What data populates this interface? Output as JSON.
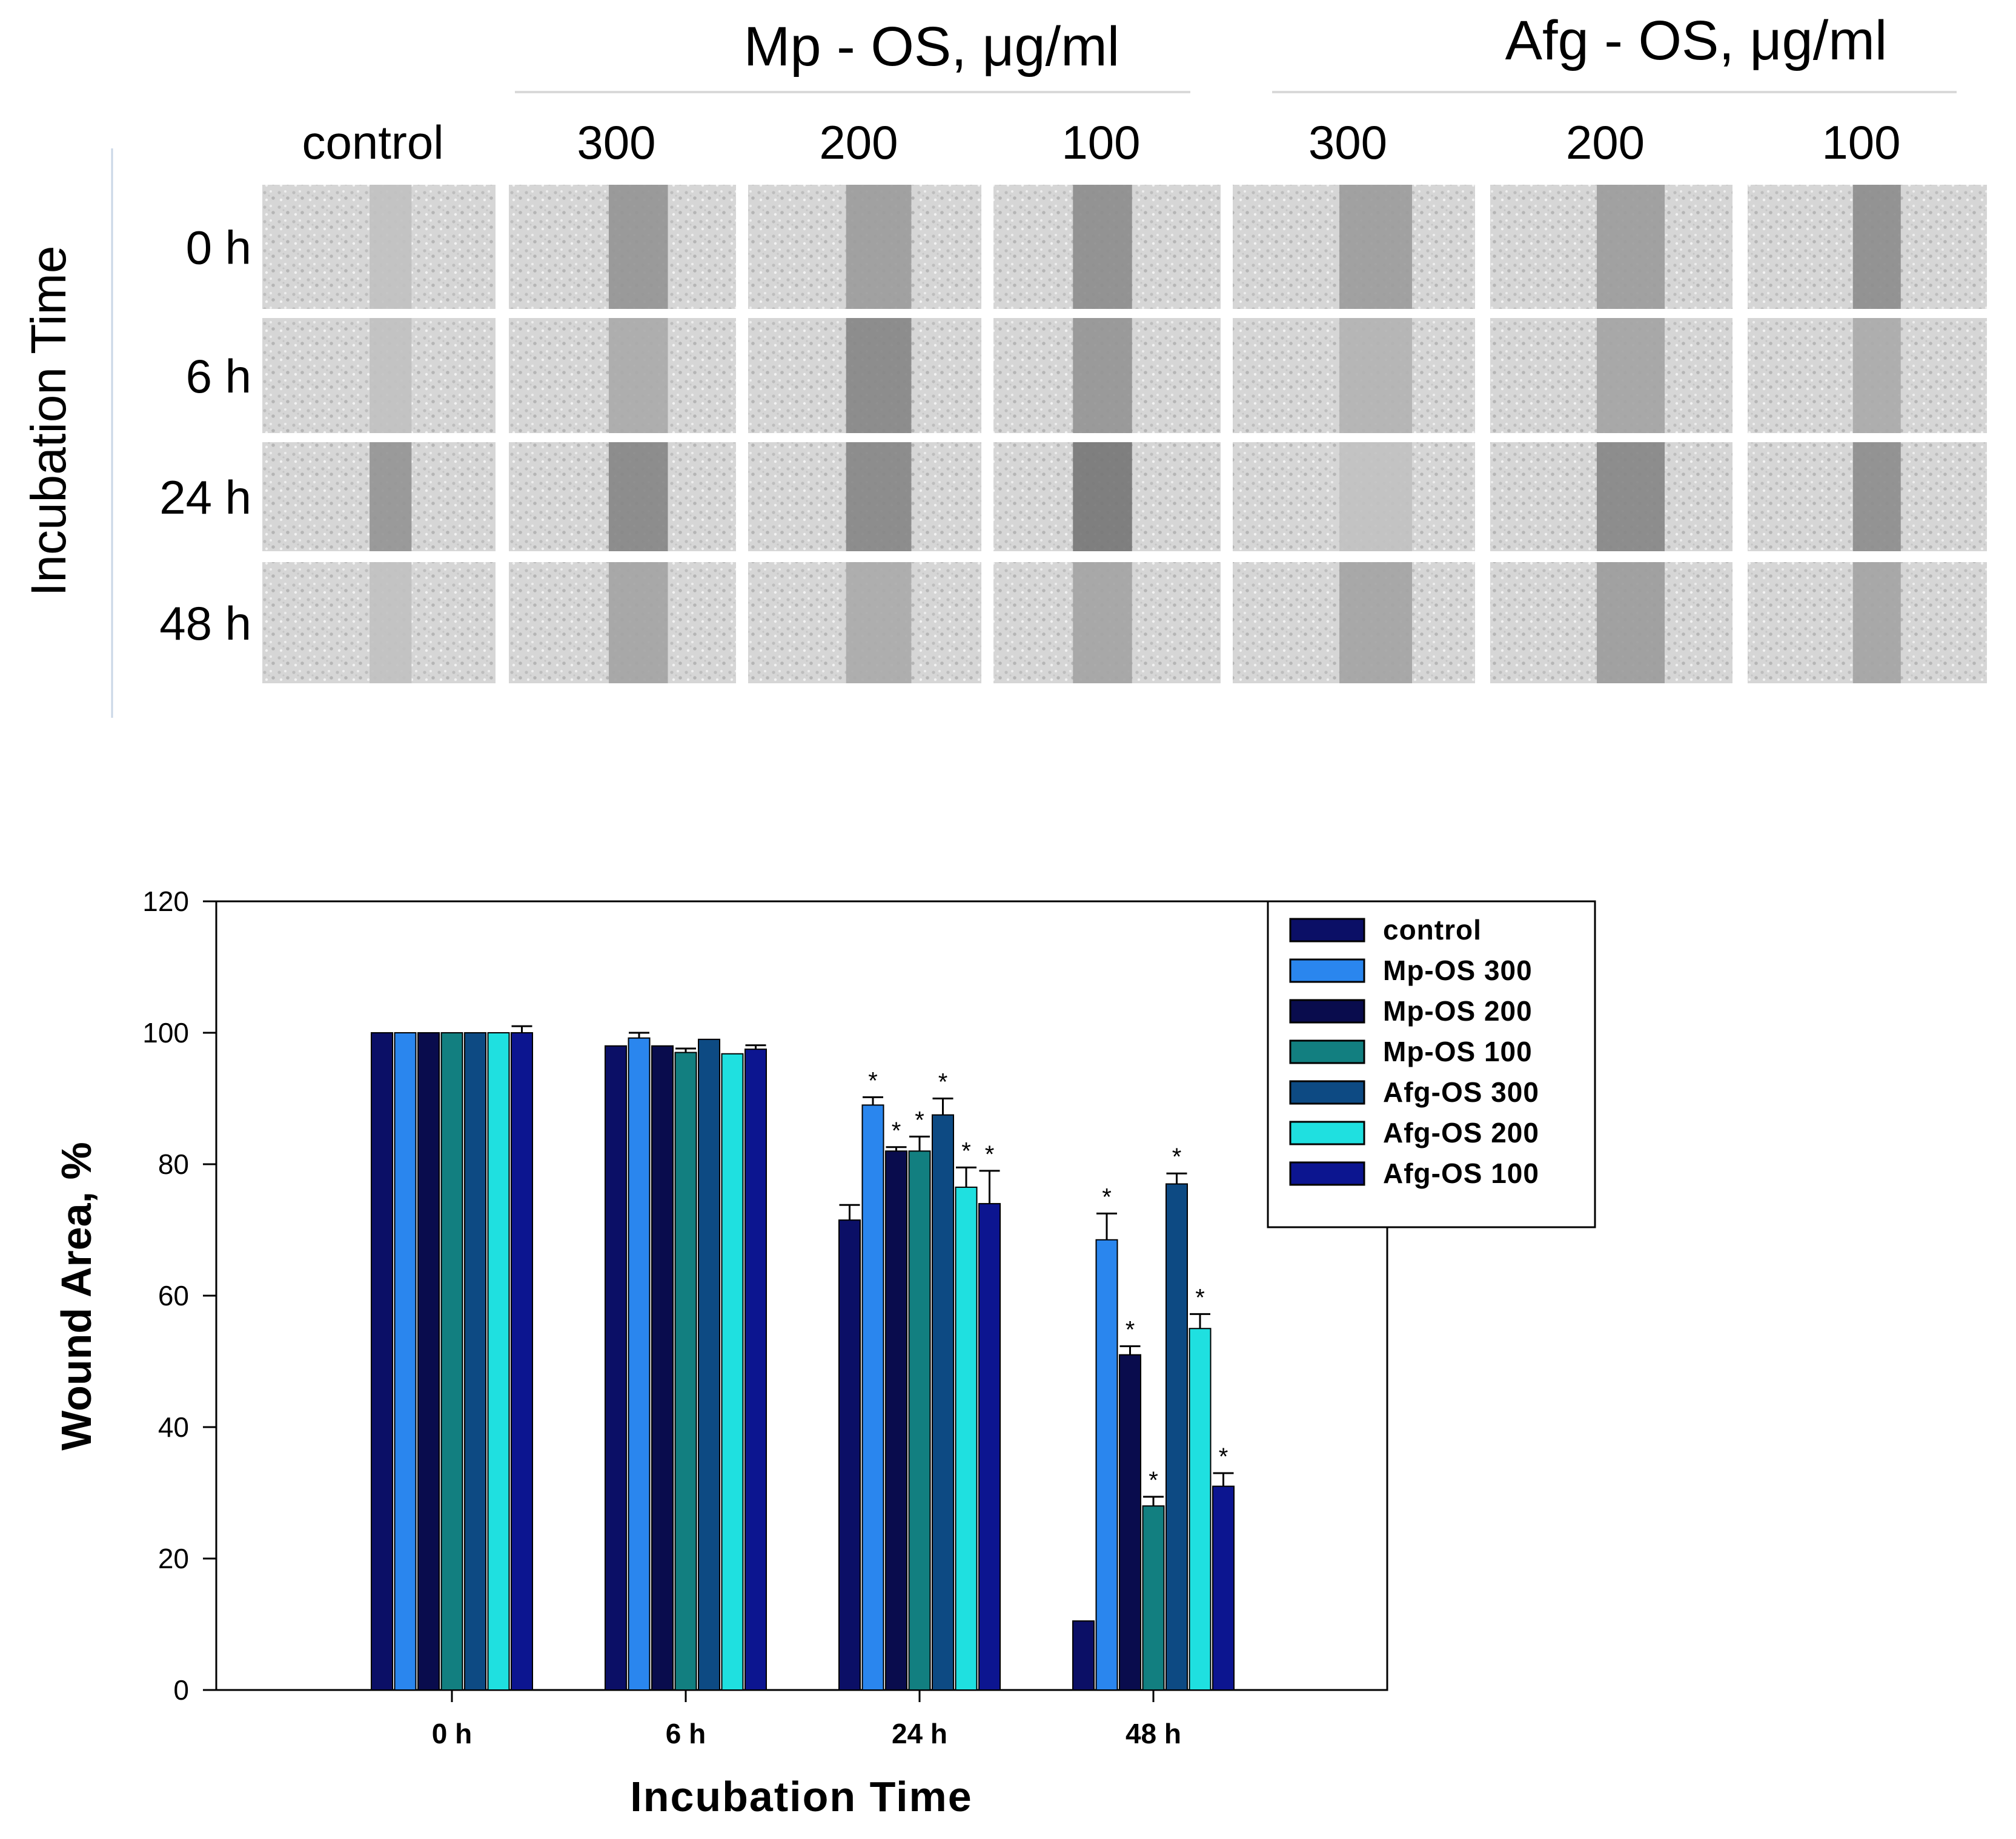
{
  "micrographs": {
    "group_mp": "Mp - OS, μg/ml",
    "group_afg": "Afg - OS, μg/ml",
    "column_labels": [
      "control",
      "300",
      "200",
      "100",
      "300",
      "200",
      "100"
    ],
    "row_labels": [
      "0 h",
      "6 h",
      "24 h",
      "48 h"
    ],
    "side_label": "Incubation Time"
  },
  "chart_data": {
    "type": "bar",
    "title": "",
    "xlabel": "Incubation Time",
    "ylabel": "Wound Area, %",
    "ylim": [
      0,
      120
    ],
    "yticks": [
      0,
      20,
      40,
      60,
      80,
      100,
      120
    ],
    "categories": [
      "0 h",
      "6 h",
      "24 h",
      "48 h"
    ],
    "legend_position": "top-right",
    "series": [
      {
        "name": "control",
        "color": "#0b0f66",
        "values": [
          100,
          98,
          71.5,
          10.5
        ],
        "errors": [
          0,
          0,
          2.3,
          0
        ],
        "significant": [
          false,
          false,
          false,
          false
        ]
      },
      {
        "name": "Mp-OS 300",
        "color": "#2a86ee",
        "values": [
          100,
          99.2,
          89,
          68.5
        ],
        "errors": [
          0,
          0.8,
          1.2,
          4
        ],
        "significant": [
          false,
          false,
          true,
          true
        ]
      },
      {
        "name": "Mp-OS 200",
        "color": "#090c4d",
        "values": [
          100,
          98,
          82,
          51
        ],
        "errors": [
          0,
          0,
          0.6,
          1.3
        ],
        "significant": [
          false,
          false,
          true,
          true
        ]
      },
      {
        "name": "Mp-OS 100",
        "color": "#127f80",
        "values": [
          100,
          97,
          82,
          28
        ],
        "errors": [
          0,
          0.6,
          2.2,
          1.4
        ],
        "significant": [
          false,
          false,
          true,
          true
        ]
      },
      {
        "name": "Afg-OS 300",
        "color": "#0d4a83",
        "values": [
          100,
          99,
          87.5,
          77
        ],
        "errors": [
          0,
          0,
          2.5,
          1.6
        ],
        "significant": [
          false,
          false,
          true,
          true
        ]
      },
      {
        "name": "Afg-OS 200",
        "color": "#1fe0e0",
        "values": [
          100,
          96.8,
          76.5,
          55
        ],
        "errors": [
          0,
          0,
          3,
          2.2
        ],
        "significant": [
          false,
          false,
          true,
          true
        ]
      },
      {
        "name": "Afg-OS 100",
        "color": "#0c1590",
        "values": [
          100,
          97.5,
          74,
          31
        ],
        "errors": [
          1,
          0.6,
          5,
          2
        ],
        "significant": [
          false,
          false,
          true,
          true
        ]
      }
    ],
    "significance_marker": "*"
  }
}
